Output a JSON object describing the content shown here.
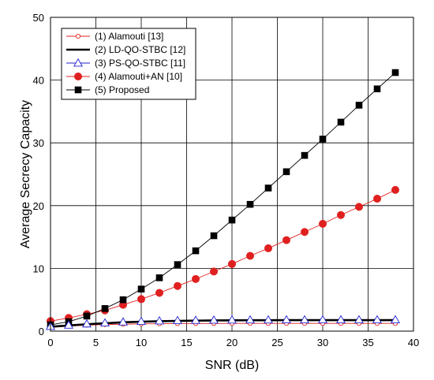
{
  "chart_data": {
    "type": "line",
    "title": "",
    "xlabel": "SNR (dB)",
    "ylabel": "Average Secrecy Capacity",
    "xlim": [
      0,
      40
    ],
    "ylim": [
      0,
      50
    ],
    "xticks": [
      0,
      5,
      10,
      15,
      20,
      25,
      30,
      35,
      40
    ],
    "yticks": [
      0,
      10,
      20,
      30,
      40,
      50
    ],
    "grid": true,
    "legend_position": "top-left",
    "x": [
      0,
      2,
      4,
      6,
      8,
      10,
      12,
      14,
      16,
      18,
      20,
      22,
      24,
      26,
      28,
      30,
      32,
      34,
      36,
      38
    ],
    "series": [
      {
        "name": "(1) Alamouti [13]",
        "color": "#e02020",
        "marker": "circle-open",
        "line": "thin",
        "values": [
          0.6,
          0.8,
          0.95,
          1.05,
          1.1,
          1.15,
          1.18,
          1.2,
          1.22,
          1.22,
          1.23,
          1.23,
          1.23,
          1.23,
          1.23,
          1.23,
          1.23,
          1.23,
          1.23,
          1.23
        ]
      },
      {
        "name": "(2) LD-QO-STBC [12]",
        "color": "#000000",
        "marker": "none",
        "line": "thick",
        "values": [
          0.7,
          0.9,
          1.1,
          1.25,
          1.4,
          1.5,
          1.58,
          1.63,
          1.67,
          1.7,
          1.72,
          1.73,
          1.74,
          1.75,
          1.75,
          1.75,
          1.75,
          1.75,
          1.75,
          1.75
        ]
      },
      {
        "name": "(3) PS-QO-STBC [11]",
        "color": "#2020d0",
        "marker": "triangle-open",
        "line": "thin",
        "values": [
          0.75,
          0.95,
          1.15,
          1.3,
          1.45,
          1.55,
          1.63,
          1.68,
          1.72,
          1.75,
          1.77,
          1.78,
          1.79,
          1.8,
          1.8,
          1.8,
          1.8,
          1.8,
          1.8,
          1.8
        ]
      },
      {
        "name": "(4) Alamouti+AN [10]",
        "color": "#e02020",
        "marker": "circle-filled",
        "line": "thin",
        "values": [
          1.6,
          2.1,
          2.7,
          3.3,
          4.2,
          5.1,
          6.1,
          7.2,
          8.3,
          9.5,
          10.7,
          12.0,
          13.2,
          14.5,
          15.8,
          17.1,
          18.5,
          19.8,
          21.1,
          22.5
        ]
      },
      {
        "name": "(5) Proposed",
        "color": "#000000",
        "marker": "square-filled",
        "line": "thin",
        "values": [
          1.0,
          1.5,
          2.4,
          3.6,
          5.0,
          6.7,
          8.5,
          10.6,
          12.8,
          15.2,
          17.7,
          20.2,
          22.8,
          25.4,
          28.0,
          30.6,
          33.3,
          36.0,
          38.6,
          41.2
        ]
      }
    ]
  }
}
